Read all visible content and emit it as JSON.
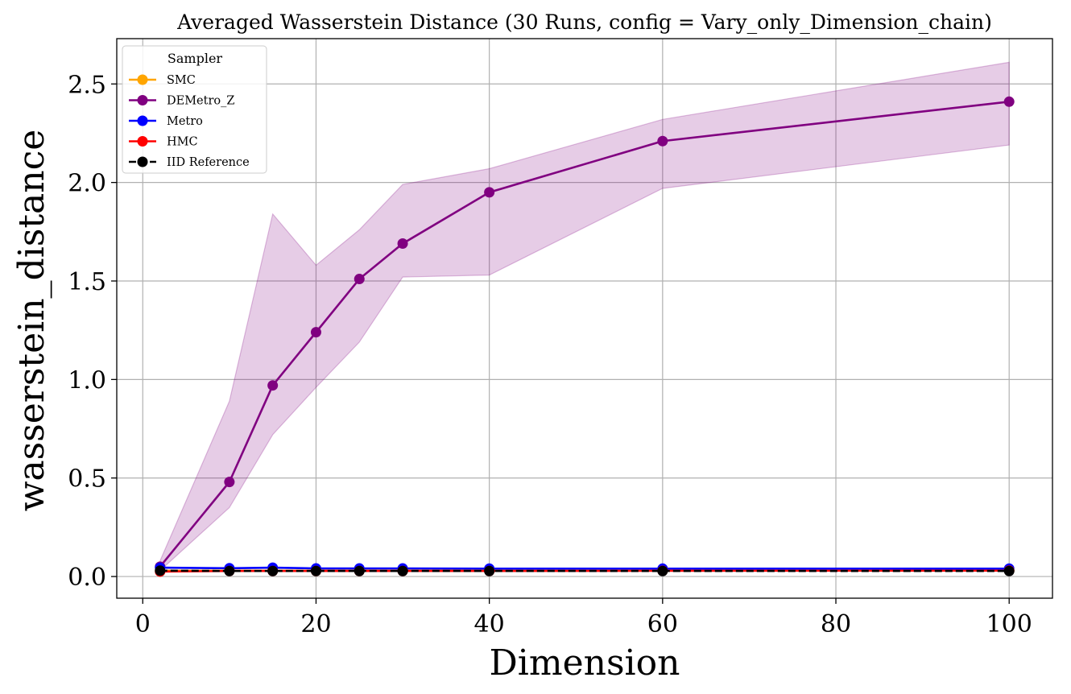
{
  "chart_data": {
    "type": "line",
    "title": "Averaged Wasserstein Distance (30 Runs, config = Vary_only_Dimension_chain)",
    "xlabel": "Dimension",
    "ylabel": "wasserstein_distance",
    "xlim": [
      -3,
      105
    ],
    "ylim": [
      -0.11,
      2.73
    ],
    "xticks": [
      0,
      20,
      40,
      60,
      80,
      100
    ],
    "yticks": [
      0.0,
      0.5,
      1.0,
      1.5,
      2.0,
      2.5
    ],
    "xtick_labels": [
      "0",
      "20",
      "40",
      "60",
      "80",
      "100"
    ],
    "ytick_labels": [
      "0.0",
      "0.5",
      "1.0",
      "1.5",
      "2.0",
      "2.5"
    ],
    "grid": true,
    "legend": {
      "title": "Sampler",
      "placement": "top-left"
    },
    "x": [
      2,
      10,
      15,
      20,
      25,
      30,
      40,
      60,
      100
    ],
    "series": [
      {
        "name": "SMC",
        "color": "#ffa500",
        "line_style": "solid",
        "values": [
          0.03,
          0.03,
          0.03,
          0.03,
          0.03,
          0.03,
          0.03,
          0.03,
          0.03
        ]
      },
      {
        "name": "DEMetro_Z",
        "color": "#800080",
        "line_style": "solid",
        "values": [
          0.05,
          0.48,
          0.97,
          1.24,
          1.51,
          1.69,
          1.95,
          2.21,
          2.41
        ],
        "band_lower": [
          0.03,
          0.35,
          0.72,
          0.96,
          1.19,
          1.52,
          1.53,
          1.97,
          2.19
        ],
        "band_upper": [
          0.08,
          0.89,
          1.84,
          1.58,
          1.76,
          1.99,
          2.07,
          2.32,
          2.61
        ]
      },
      {
        "name": "Metro",
        "color": "#0000ff",
        "line_style": "solid",
        "values": [
          0.045,
          0.042,
          0.045,
          0.041,
          0.041,
          0.041,
          0.04,
          0.04,
          0.04
        ]
      },
      {
        "name": "HMC",
        "color": "#ff0000",
        "line_style": "solid",
        "values": [
          0.025,
          0.028,
          0.028,
          0.028,
          0.028,
          0.028,
          0.028,
          0.029,
          0.03
        ]
      },
      {
        "name": "IID Reference",
        "color": "#000000",
        "line_style": "dashed",
        "values": [
          0.03,
          0.028,
          0.028,
          0.028,
          0.028,
          0.028,
          0.028,
          0.028,
          0.028
        ]
      }
    ]
  }
}
